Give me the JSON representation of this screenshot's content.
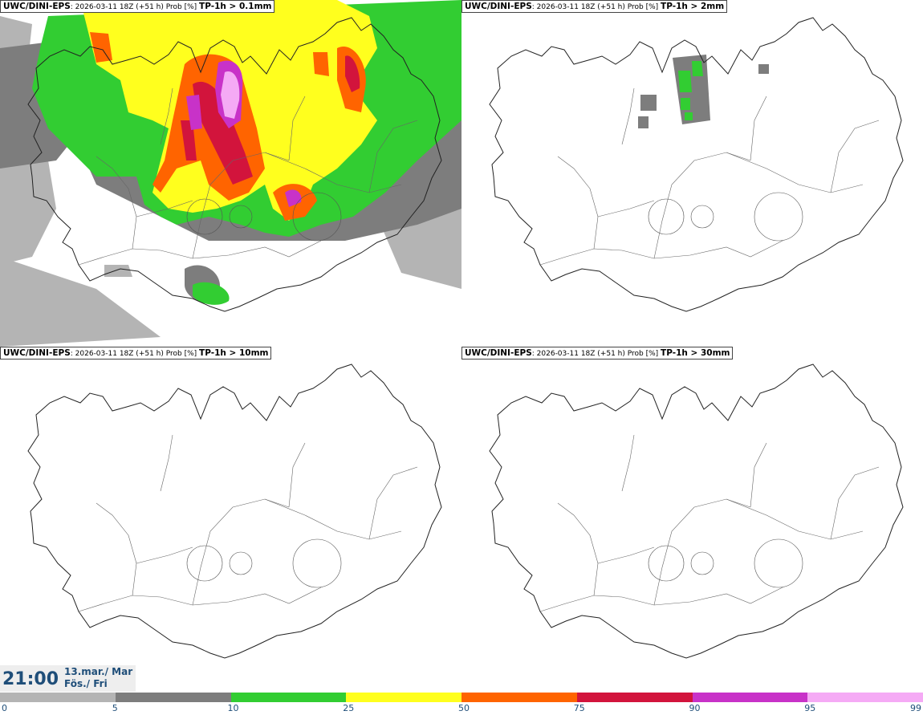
{
  "panels": [
    {
      "model": "UWC/DINI-EPS",
      "info": ": 2026-03-11 18Z (+51 h) Prob [%]",
      "field": "TP-1h > 0.1mm"
    },
    {
      "model": "UWC/DINI-EPS",
      "info": ": 2026-03-11 18Z (+51 h) Prob [%]",
      "field": "TP-1h > 2mm"
    },
    {
      "model": "UWC/DINI-EPS",
      "info": ": 2026-03-11 18Z (+51 h) Prob [%]",
      "field": "TP-1h > 10mm"
    },
    {
      "model": "UWC/DINI-EPS",
      "info": ": 2026-03-11 18Z (+51 h) Prob [%]",
      "field": "TP-1h > 30mm"
    }
  ],
  "valid_time": {
    "time": "21:00",
    "date_line": "13.mar./ Mar",
    "day_line": "Fös./ Fri"
  },
  "colorbar": {
    "ticks": [
      "0",
      "5",
      "10",
      "25",
      "50",
      "75",
      "90",
      "95",
      "99"
    ],
    "colors": [
      "#ffffff",
      "#b4b4b4",
      "#7d7d7d",
      "#32cd32",
      "#ffff1e",
      "#ff6400",
      "#d2143c",
      "#c832c8",
      "#f5aaf5"
    ]
  }
}
